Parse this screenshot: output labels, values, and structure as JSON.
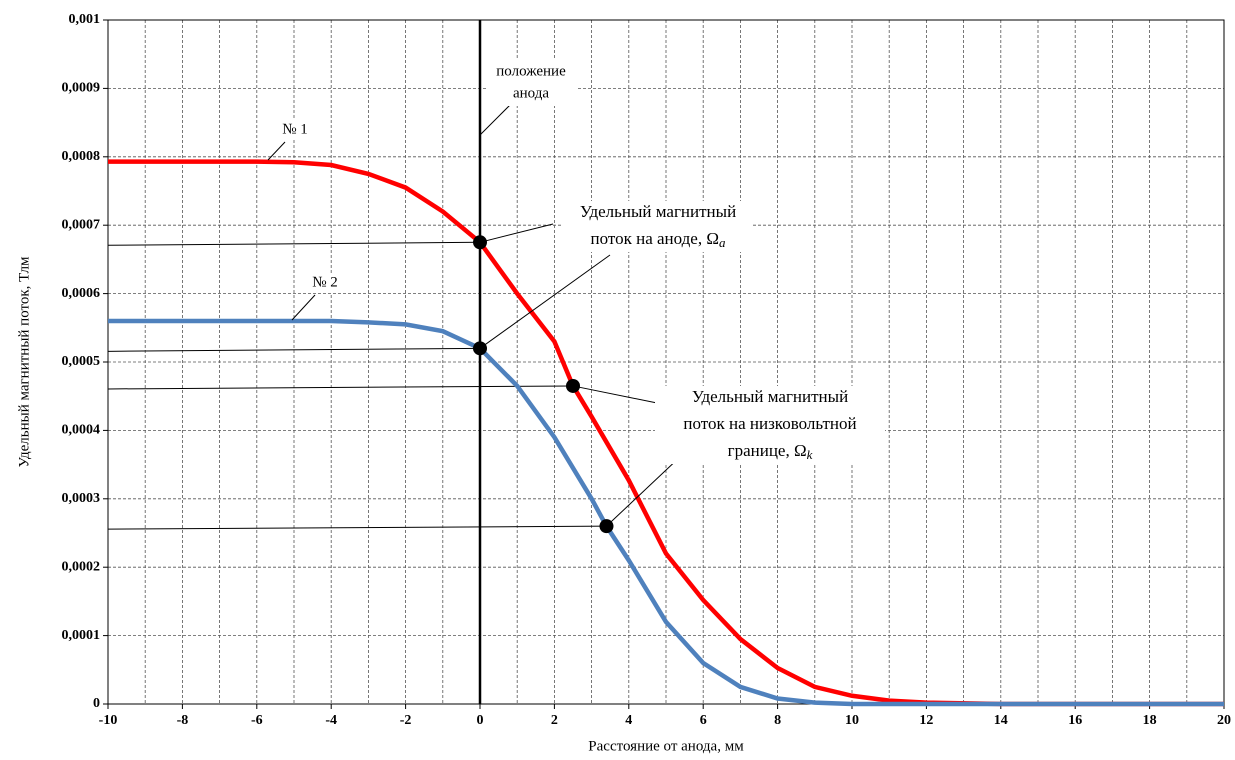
{
  "chart_data": {
    "type": "line",
    "xlabel": "Расстояние от анода, мм",
    "ylabel": "Удельный магнитный поток, Тлм",
    "xlim": [
      -10,
      20
    ],
    "xticks": [
      -10,
      -8,
      -6,
      -4,
      -2,
      0,
      2,
      4,
      6,
      8,
      10,
      12,
      14,
      16,
      18,
      20
    ],
    "xminor_ticks": [
      -9,
      -7,
      -5,
      -3,
      -1,
      1,
      3,
      5,
      7,
      9,
      11,
      13,
      15,
      17,
      19
    ],
    "ylim": [
      0,
      0.001
    ],
    "yticks": [
      0,
      {
        "value": 0.0001,
        "label": "0,0001"
      },
      {
        "value": 0.0002,
        "label": "0,0002"
      },
      {
        "value": 0.0003,
        "label": "0,0003"
      },
      {
        "value": 0.0004,
        "label": "0,0004"
      },
      {
        "value": 0.0005,
        "label": "0,0005"
      },
      {
        "value": 0.0006,
        "label": "0,0006"
      },
      {
        "value": 0.0007,
        "label": "0,0007"
      },
      {
        "value": 0.0008,
        "label": "0,0008"
      },
      {
        "value": 0.0009,
        "label": "0,0009"
      },
      {
        "value": 0.001,
        "label": "0,001"
      }
    ],
    "grid": true,
    "anode_x": 0,
    "series": [
      {
        "name": "№ 1",
        "color": "#ff0000",
        "x": [
          -10,
          -8,
          -6,
          -5,
          -4,
          -3,
          -2,
          -1,
          0,
          1,
          2,
          2.5,
          3,
          4,
          5,
          6,
          7,
          8,
          9,
          10,
          11,
          12,
          14,
          16,
          18,
          20
        ],
        "values": [
          0.000793,
          0.000793,
          0.000793,
          0.000792,
          0.000788,
          0.000775,
          0.000755,
          0.00072,
          0.000675,
          0.0006,
          0.00053,
          0.000465,
          0.00042,
          0.000327,
          0.00022,
          0.000152,
          9.5e-05,
          5.26e-05,
          2.5e-05,
          1.2e-05,
          5e-06,
          2e-06,
          0,
          0,
          0,
          0
        ]
      },
      {
        "name": "№ 2",
        "color": "#4f81bd",
        "x": [
          -10,
          -8,
          -6,
          -4,
          -3,
          -2,
          -1,
          0,
          1,
          2,
          3,
          3.4,
          4,
          5,
          6,
          7,
          8,
          9,
          10,
          12,
          14,
          16,
          18,
          20
        ],
        "values": [
          0.00056,
          0.00056,
          0.00056,
          0.00056,
          0.000558,
          0.000555,
          0.000545,
          0.00052,
          0.000465,
          0.00039,
          0.0003,
          0.00026,
          0.00021,
          0.00012,
          6e-05,
          2.5e-05,
          8e-06,
          2e-06,
          0,
          0,
          0,
          0,
          0,
          0
        ]
      }
    ],
    "markers": {
      "x": [
        0,
        0,
        2.5,
        3.4
      ],
      "values": [
        0.000675,
        0.00052,
        0.000465,
        0.00026
      ]
    },
    "annotations": [
      {
        "lines": [
          "положение",
          "анода"
        ]
      },
      {
        "lines": [
          "Удельный магнитный",
          "поток на аноде, Ω"
        ],
        "sub": "a"
      },
      {
        "lines": [
          "Удельный магнитный",
          "поток на низковольтной",
          "границе, Ω"
        ],
        "sub": "k"
      }
    ]
  }
}
